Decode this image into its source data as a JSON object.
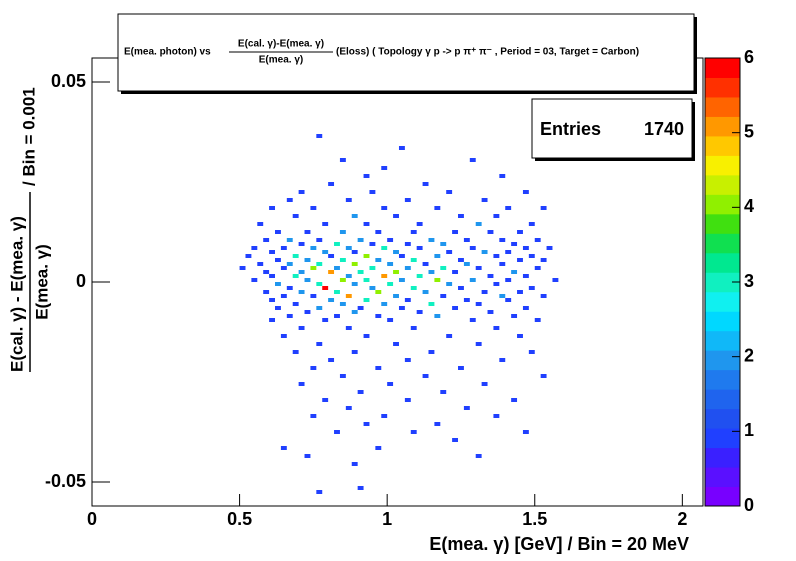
{
  "chart_data": {
    "type": "heatmap",
    "title": {
      "prefix": "E(mea. photon) vs",
      "numerator": "E(cal. γ)-E(mea. γ)",
      "denominator": "E(mea. γ)",
      "suffix": "(Eloss) ( Topology γ p -> p π⁺ π⁻ , Period = 03, Target = Carbon)"
    },
    "x_label": "E(mea. γ) [GeV] / Bin = 20 MeV",
    "y_label": {
      "numerator": "E(cal. γ) - E(mea. γ)",
      "denominator": "E(mea. γ)",
      "suffix": "/ Bin = 0.001"
    },
    "stats": {
      "label": "Entries",
      "value": 1740
    },
    "xlim": [
      0,
      2.07
    ],
    "xticks": [
      0,
      0.5,
      1,
      1.5,
      2
    ],
    "x_bin": 0.02,
    "ylim": [
      -0.056,
      0.056
    ],
    "yticks": [
      -0.05,
      0,
      0.05
    ],
    "y_bin": 0.001,
    "zlim": [
      0,
      6
    ],
    "zticks": [
      0,
      1,
      2,
      3,
      4,
      5,
      6
    ],
    "palette": [
      "#7800ff",
      "#5a10ff",
      "#3a20ff",
      "#2040ff",
      "#2050f0",
      "#1f64ee",
      "#1f7aee",
      "#1f96ee",
      "#10b8f8",
      "#00d8ff",
      "#10f0f0",
      "#10f0c0",
      "#00e890",
      "#10e050",
      "#40e010",
      "#90f000",
      "#c8f000",
      "#f8f000",
      "#ffc800",
      "#ff9800",
      "#ff6400",
      "#ff3000",
      "#ff0000"
    ],
    "cells": [
      [
        0.76,
        0.036,
        1
      ],
      [
        1.04,
        0.033,
        1
      ],
      [
        0.84,
        0.03,
        1
      ],
      [
        1.28,
        0.03,
        1
      ],
      [
        0.98,
        0.028,
        1
      ],
      [
        0.92,
        0.026,
        1
      ],
      [
        1.38,
        0.026,
        1
      ],
      [
        0.8,
        0.024,
        1
      ],
      [
        1.12,
        0.024,
        1
      ],
      [
        0.7,
        0.022,
        1
      ],
      [
        0.94,
        0.022,
        1
      ],
      [
        1.2,
        0.022,
        1
      ],
      [
        1.46,
        0.022,
        1
      ],
      [
        0.66,
        0.02,
        1
      ],
      [
        0.86,
        0.02,
        1
      ],
      [
        1.06,
        0.02,
        1
      ],
      [
        1.32,
        0.02,
        1
      ],
      [
        0.6,
        0.018,
        1
      ],
      [
        0.74,
        0.018,
        1
      ],
      [
        0.98,
        0.018,
        1
      ],
      [
        1.16,
        0.018,
        1
      ],
      [
        1.4,
        0.018,
        1
      ],
      [
        1.52,
        0.018,
        1
      ],
      [
        0.68,
        0.016,
        1
      ],
      [
        0.88,
        0.016,
        2
      ],
      [
        1.02,
        0.016,
        1
      ],
      [
        1.24,
        0.016,
        1
      ],
      [
        1.36,
        0.016,
        1
      ],
      [
        0.56,
        0.014,
        1
      ],
      [
        0.78,
        0.014,
        1
      ],
      [
        0.92,
        0.014,
        1
      ],
      [
        1.1,
        0.014,
        1
      ],
      [
        1.3,
        0.014,
        2
      ],
      [
        1.48,
        0.014,
        1
      ],
      [
        0.62,
        0.012,
        1
      ],
      [
        0.72,
        0.012,
        1
      ],
      [
        0.84,
        0.012,
        2
      ],
      [
        0.96,
        0.012,
        1
      ],
      [
        1.08,
        0.012,
        1
      ],
      [
        1.22,
        0.012,
        1
      ],
      [
        1.34,
        0.012,
        1
      ],
      [
        1.44,
        0.012,
        1
      ],
      [
        0.58,
        0.01,
        1
      ],
      [
        0.66,
        0.01,
        2
      ],
      [
        0.76,
        0.01,
        1
      ],
      [
        0.9,
        0.01,
        2
      ],
      [
        1.0,
        0.01,
        1
      ],
      [
        1.14,
        0.01,
        2
      ],
      [
        1.26,
        0.01,
        1
      ],
      [
        1.38,
        0.01,
        1
      ],
      [
        1.5,
        0.01,
        1
      ],
      [
        0.7,
        0.009,
        1
      ],
      [
        0.82,
        0.009,
        3
      ],
      [
        0.94,
        0.009,
        1
      ],
      [
        1.06,
        0.009,
        1
      ],
      [
        1.18,
        0.009,
        2
      ],
      [
        1.42,
        0.009,
        1
      ],
      [
        0.54,
        0.008,
        1
      ],
      [
        0.64,
        0.008,
        1
      ],
      [
        0.74,
        0.008,
        2
      ],
      [
        0.86,
        0.008,
        2
      ],
      [
        0.98,
        0.008,
        3
      ],
      [
        1.1,
        0.008,
        1
      ],
      [
        1.28,
        0.008,
        1
      ],
      [
        1.46,
        0.008,
        1
      ],
      [
        1.54,
        0.008,
        1
      ],
      [
        0.6,
        0.007,
        1
      ],
      [
        0.78,
        0.007,
        2
      ],
      [
        0.88,
        0.007,
        1
      ],
      [
        1.02,
        0.007,
        2
      ],
      [
        1.2,
        0.007,
        1
      ],
      [
        1.32,
        0.007,
        2
      ],
      [
        1.4,
        0.007,
        1
      ],
      [
        0.52,
        0.006,
        1
      ],
      [
        0.68,
        0.006,
        3
      ],
      [
        0.8,
        0.006,
        1
      ],
      [
        0.92,
        0.006,
        4
      ],
      [
        1.04,
        0.006,
        1
      ],
      [
        1.16,
        0.006,
        2
      ],
      [
        1.36,
        0.006,
        1
      ],
      [
        1.48,
        0.006,
        1
      ],
      [
        0.62,
        0.005,
        1
      ],
      [
        0.72,
        0.005,
        2
      ],
      [
        0.84,
        0.005,
        3
      ],
      [
        0.96,
        0.005,
        2
      ],
      [
        1.08,
        0.005,
        3
      ],
      [
        1.24,
        0.005,
        1
      ],
      [
        1.44,
        0.005,
        1
      ],
      [
        1.52,
        0.005,
        1
      ],
      [
        0.56,
        0.004,
        1
      ],
      [
        0.66,
        0.004,
        2
      ],
      [
        0.76,
        0.004,
        3
      ],
      [
        0.88,
        0.004,
        4
      ],
      [
        1.0,
        0.004,
        2
      ],
      [
        1.12,
        0.004,
        1
      ],
      [
        1.26,
        0.004,
        2
      ],
      [
        1.38,
        0.004,
        1
      ],
      [
        0.5,
        0.003,
        1
      ],
      [
        0.64,
        0.003,
        1
      ],
      [
        0.74,
        0.003,
        4
      ],
      [
        0.82,
        0.003,
        2
      ],
      [
        0.94,
        0.003,
        3
      ],
      [
        1.06,
        0.003,
        2
      ],
      [
        1.18,
        0.003,
        3
      ],
      [
        1.3,
        0.003,
        1
      ],
      [
        1.5,
        0.003,
        1
      ],
      [
        0.58,
        0.002,
        1
      ],
      [
        0.7,
        0.002,
        2
      ],
      [
        0.8,
        0.002,
        5
      ],
      [
        0.9,
        0.002,
        3
      ],
      [
        1.02,
        0.002,
        4
      ],
      [
        1.14,
        0.002,
        2
      ],
      [
        1.22,
        0.002,
        1
      ],
      [
        1.42,
        0.002,
        2
      ],
      [
        0.6,
        0.001,
        1
      ],
      [
        0.68,
        0.001,
        3
      ],
      [
        0.86,
        0.001,
        2
      ],
      [
        0.98,
        0.001,
        5
      ],
      [
        1.1,
        0.001,
        3
      ],
      [
        1.34,
        0.001,
        1
      ],
      [
        1.46,
        0.001,
        1
      ],
      [
        0.54,
        0.0,
        1
      ],
      [
        0.72,
        0.0,
        2
      ],
      [
        0.84,
        0.0,
        4
      ],
      [
        0.92,
        0.0,
        3
      ],
      [
        1.04,
        0.0,
        2
      ],
      [
        1.16,
        0.0,
        4
      ],
      [
        1.28,
        0.0,
        2
      ],
      [
        1.4,
        0.0,
        1
      ],
      [
        1.56,
        0.0,
        1
      ],
      [
        0.62,
        -0.001,
        2
      ],
      [
        0.76,
        -0.001,
        3
      ],
      [
        0.88,
        -0.001,
        2
      ],
      [
        1.0,
        -0.001,
        3
      ],
      [
        1.2,
        -0.001,
        2
      ],
      [
        1.36,
        -0.001,
        1
      ],
      [
        0.66,
        -0.002,
        1
      ],
      [
        0.78,
        -0.002,
        6
      ],
      [
        0.94,
        -0.002,
        2
      ],
      [
        1.08,
        -0.002,
        3
      ],
      [
        1.24,
        -0.002,
        1
      ],
      [
        1.48,
        -0.002,
        1
      ],
      [
        0.58,
        -0.003,
        1
      ],
      [
        0.7,
        -0.003,
        2
      ],
      [
        0.82,
        -0.003,
        3
      ],
      [
        0.96,
        -0.003,
        4
      ],
      [
        1.12,
        -0.003,
        2
      ],
      [
        1.32,
        -0.003,
        1
      ],
      [
        1.44,
        -0.003,
        1
      ],
      [
        0.64,
        -0.004,
        1
      ],
      [
        0.74,
        -0.004,
        1
      ],
      [
        0.86,
        -0.004,
        5
      ],
      [
        1.02,
        -0.004,
        2
      ],
      [
        1.18,
        -0.004,
        1
      ],
      [
        1.38,
        -0.004,
        2
      ],
      [
        1.52,
        -0.004,
        1
      ],
      [
        0.6,
        -0.005,
        1
      ],
      [
        0.8,
        -0.005,
        2
      ],
      [
        0.92,
        -0.005,
        3
      ],
      [
        1.06,
        -0.005,
        1
      ],
      [
        1.26,
        -0.005,
        1
      ],
      [
        1.4,
        -0.005,
        1
      ],
      [
        0.68,
        -0.006,
        1
      ],
      [
        0.84,
        -0.006,
        2
      ],
      [
        0.98,
        -0.006,
        2
      ],
      [
        1.14,
        -0.006,
        3
      ],
      [
        1.3,
        -0.006,
        1
      ],
      [
        0.62,
        -0.007,
        1
      ],
      [
        0.76,
        -0.007,
        2
      ],
      [
        0.9,
        -0.007,
        1
      ],
      [
        1.04,
        -0.007,
        1
      ],
      [
        1.22,
        -0.007,
        1
      ],
      [
        1.46,
        -0.007,
        1
      ],
      [
        0.72,
        -0.008,
        1
      ],
      [
        0.88,
        -0.008,
        2
      ],
      [
        1.1,
        -0.008,
        1
      ],
      [
        1.34,
        -0.008,
        1
      ],
      [
        0.66,
        -0.009,
        1
      ],
      [
        0.82,
        -0.009,
        1
      ],
      [
        0.96,
        -0.009,
        1
      ],
      [
        1.16,
        -0.009,
        2
      ],
      [
        1.42,
        -0.009,
        1
      ],
      [
        0.6,
        -0.01,
        1
      ],
      [
        0.78,
        -0.01,
        1
      ],
      [
        1.0,
        -0.01,
        1
      ],
      [
        1.28,
        -0.01,
        1
      ],
      [
        1.5,
        -0.01,
        1
      ],
      [
        0.7,
        -0.012,
        1
      ],
      [
        0.86,
        -0.012,
        1
      ],
      [
        1.08,
        -0.012,
        1
      ],
      [
        1.36,
        -0.012,
        1
      ],
      [
        0.64,
        -0.014,
        1
      ],
      [
        0.92,
        -0.014,
        1
      ],
      [
        1.2,
        -0.014,
        1
      ],
      [
        1.44,
        -0.014,
        1
      ],
      [
        0.76,
        -0.016,
        1
      ],
      [
        1.02,
        -0.016,
        1
      ],
      [
        1.3,
        -0.016,
        1
      ],
      [
        0.68,
        -0.018,
        1
      ],
      [
        0.88,
        -0.018,
        1
      ],
      [
        1.14,
        -0.018,
        1
      ],
      [
        1.48,
        -0.018,
        1
      ],
      [
        0.8,
        -0.02,
        1
      ],
      [
        1.06,
        -0.02,
        1
      ],
      [
        1.38,
        -0.02,
        1
      ],
      [
        0.74,
        -0.022,
        1
      ],
      [
        0.96,
        -0.022,
        1
      ],
      [
        1.24,
        -0.022,
        1
      ],
      [
        0.84,
        -0.024,
        1
      ],
      [
        1.12,
        -0.024,
        1
      ],
      [
        1.52,
        -0.024,
        1
      ],
      [
        0.7,
        -0.026,
        1
      ],
      [
        1.0,
        -0.026,
        1
      ],
      [
        1.32,
        -0.026,
        1
      ],
      [
        0.9,
        -0.028,
        1
      ],
      [
        1.18,
        -0.028,
        1
      ],
      [
        0.78,
        -0.03,
        1
      ],
      [
        1.06,
        -0.03,
        1
      ],
      [
        1.42,
        -0.03,
        1
      ],
      [
        0.86,
        -0.032,
        1
      ],
      [
        1.26,
        -0.032,
        1
      ],
      [
        0.74,
        -0.034,
        1
      ],
      [
        0.98,
        -0.034,
        1
      ],
      [
        1.36,
        -0.034,
        1
      ],
      [
        0.92,
        -0.036,
        1
      ],
      [
        1.16,
        -0.036,
        1
      ],
      [
        0.82,
        -0.038,
        1
      ],
      [
        1.08,
        -0.038,
        1
      ],
      [
        1.46,
        -0.038,
        1
      ],
      [
        1.22,
        -0.04,
        1
      ],
      [
        0.64,
        -0.042,
        1
      ],
      [
        0.96,
        -0.042,
        1
      ],
      [
        0.72,
        -0.044,
        1
      ],
      [
        1.3,
        -0.044,
        1
      ],
      [
        0.88,
        -0.046,
        1
      ],
      [
        0.9,
        -0.052,
        1
      ],
      [
        0.76,
        -0.053,
        1
      ]
    ]
  }
}
